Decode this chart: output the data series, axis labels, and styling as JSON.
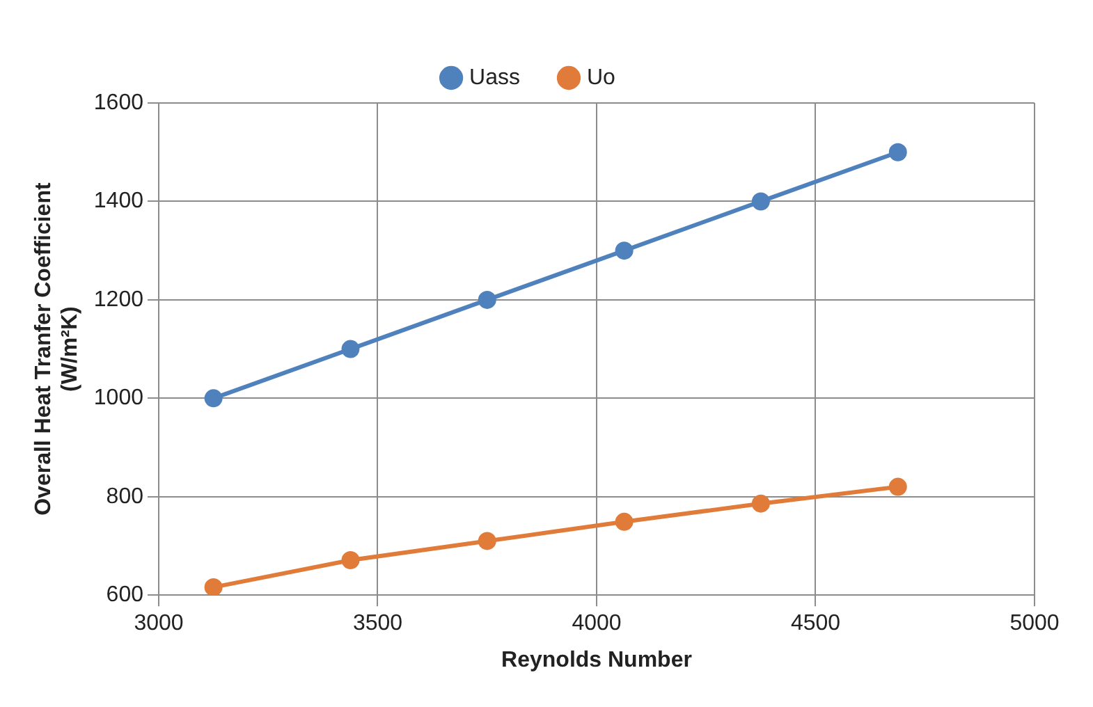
{
  "chart_data": {
    "type": "line",
    "xlabel": "Reynolds Number",
    "ylabel": "Overall Heat Tranfer Coefficient (W/m²K)",
    "x": [
      3125,
      3438,
      3750,
      4063,
      4375,
      4688
    ],
    "series": [
      {
        "name": "Uass",
        "color": "#4f81bd",
        "values": [
          1000,
          1100,
          1200,
          1300,
          1400,
          1500
        ]
      },
      {
        "name": "Uo",
        "color": "#e07b39",
        "values": [
          616,
          671,
          710,
          749,
          786,
          820
        ]
      }
    ],
    "xlim": [
      3000,
      5000
    ],
    "xticks": [
      3000,
      3500,
      4000,
      4500,
      5000
    ],
    "ylim": [
      600,
      1600
    ],
    "yticks": [
      600,
      800,
      1000,
      1200,
      1400,
      1600
    ],
    "grid": true,
    "legend": "top",
    "marker": "circle",
    "line_style": "solid"
  }
}
